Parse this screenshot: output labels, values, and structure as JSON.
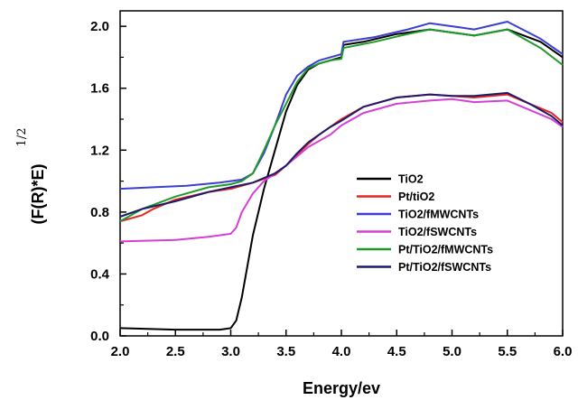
{
  "chart_data": {
    "type": "line",
    "title": "",
    "xlabel": "Energy/ev",
    "ylabel": "(F(R)*E)",
    "ylabel_superscript": "1/2",
    "xlim": [
      2.0,
      6.0
    ],
    "ylim": [
      0.0,
      2.1
    ],
    "x_ticks": [
      "2.0",
      "2.5",
      "3.0",
      "3.5",
      "4.0",
      "4.5",
      "5.0",
      "5.5",
      "6.0"
    ],
    "y_ticks": [
      "0.0",
      "0.4",
      "0.8",
      "1.2",
      "1.6",
      "2.0"
    ],
    "grid": false,
    "legend_position": "right-center",
    "series": [
      {
        "name": "TiO2",
        "color": "#000000",
        "points": [
          [
            2.0,
            0.05
          ],
          [
            2.5,
            0.04
          ],
          [
            2.9,
            0.04
          ],
          [
            3.0,
            0.05
          ],
          [
            3.05,
            0.1
          ],
          [
            3.1,
            0.25
          ],
          [
            3.15,
            0.45
          ],
          [
            3.2,
            0.65
          ],
          [
            3.3,
            0.95
          ],
          [
            3.4,
            1.2
          ],
          [
            3.5,
            1.45
          ],
          [
            3.6,
            1.62
          ],
          [
            3.7,
            1.72
          ],
          [
            3.8,
            1.76
          ],
          [
            3.9,
            1.78
          ],
          [
            4.0,
            1.8
          ],
          [
            4.02,
            1.88
          ],
          [
            4.2,
            1.9
          ],
          [
            4.5,
            1.95
          ],
          [
            4.8,
            1.98
          ],
          [
            5.0,
            1.96
          ],
          [
            5.2,
            1.94
          ],
          [
            5.5,
            1.98
          ],
          [
            5.8,
            1.9
          ],
          [
            6.0,
            1.8
          ]
        ]
      },
      {
        "name": "Pt/tiO2",
        "color": "#e8251f",
        "points": [
          [
            2.0,
            0.74
          ],
          [
            2.2,
            0.78
          ],
          [
            2.3,
            0.82
          ],
          [
            2.5,
            0.88
          ],
          [
            2.8,
            0.93
          ],
          [
            3.0,
            0.95
          ],
          [
            3.2,
            0.99
          ],
          [
            3.4,
            1.04
          ],
          [
            3.5,
            1.1
          ],
          [
            3.6,
            1.17
          ],
          [
            3.7,
            1.24
          ],
          [
            3.8,
            1.3
          ],
          [
            3.9,
            1.35
          ],
          [
            4.0,
            1.4
          ],
          [
            4.2,
            1.48
          ],
          [
            4.5,
            1.54
          ],
          [
            4.8,
            1.56
          ],
          [
            5.0,
            1.55
          ],
          [
            5.2,
            1.54
          ],
          [
            5.5,
            1.56
          ],
          [
            5.7,
            1.5
          ],
          [
            5.9,
            1.44
          ],
          [
            6.0,
            1.38
          ]
        ]
      },
      {
        "name": "TiO2/fMWCNTs",
        "color": "#3a3fd0",
        "points": [
          [
            2.0,
            0.95
          ],
          [
            2.3,
            0.96
          ],
          [
            2.6,
            0.97
          ],
          [
            2.9,
            0.99
          ],
          [
            3.1,
            1.01
          ],
          [
            3.2,
            1.05
          ],
          [
            3.3,
            1.18
          ],
          [
            3.4,
            1.36
          ],
          [
            3.5,
            1.56
          ],
          [
            3.6,
            1.68
          ],
          [
            3.7,
            1.74
          ],
          [
            3.8,
            1.78
          ],
          [
            3.9,
            1.8
          ],
          [
            4.0,
            1.82
          ],
          [
            4.02,
            1.9
          ],
          [
            4.3,
            1.93
          ],
          [
            4.6,
            1.98
          ],
          [
            4.8,
            2.02
          ],
          [
            5.0,
            2.0
          ],
          [
            5.2,
            1.98
          ],
          [
            5.5,
            2.03
          ],
          [
            5.8,
            1.92
          ],
          [
            6.0,
            1.82
          ]
        ]
      },
      {
        "name": "TiO2/fSWCNTs",
        "color": "#d63fd6",
        "points": [
          [
            2.0,
            0.61
          ],
          [
            2.5,
            0.62
          ],
          [
            2.8,
            0.64
          ],
          [
            3.0,
            0.66
          ],
          [
            3.05,
            0.7
          ],
          [
            3.1,
            0.8
          ],
          [
            3.2,
            0.92
          ],
          [
            3.3,
            1.0
          ],
          [
            3.5,
            1.1
          ],
          [
            3.7,
            1.22
          ],
          [
            3.9,
            1.3
          ],
          [
            4.0,
            1.36
          ],
          [
            4.2,
            1.44
          ],
          [
            4.5,
            1.5
          ],
          [
            4.8,
            1.52
          ],
          [
            5.0,
            1.53
          ],
          [
            5.2,
            1.51
          ],
          [
            5.5,
            1.52
          ],
          [
            5.7,
            1.46
          ],
          [
            5.9,
            1.4
          ],
          [
            6.0,
            1.35
          ]
        ]
      },
      {
        "name": "Pt/TiO2/fMWCNTs",
        "color": "#1f9a2a",
        "points": [
          [
            2.0,
            0.74
          ],
          [
            2.2,
            0.82
          ],
          [
            2.5,
            0.9
          ],
          [
            2.8,
            0.96
          ],
          [
            3.0,
            0.98
          ],
          [
            3.1,
            1.0
          ],
          [
            3.2,
            1.05
          ],
          [
            3.3,
            1.2
          ],
          [
            3.4,
            1.36
          ],
          [
            3.5,
            1.5
          ],
          [
            3.6,
            1.64
          ],
          [
            3.7,
            1.73
          ],
          [
            3.8,
            1.76
          ],
          [
            3.9,
            1.78
          ],
          [
            4.0,
            1.79
          ],
          [
            4.02,
            1.86
          ],
          [
            4.3,
            1.9
          ],
          [
            4.6,
            1.95
          ],
          [
            4.8,
            1.98
          ],
          [
            5.0,
            1.96
          ],
          [
            5.2,
            1.94
          ],
          [
            5.5,
            1.98
          ],
          [
            5.8,
            1.86
          ],
          [
            6.0,
            1.75
          ]
        ]
      },
      {
        "name": "Pt/TiO2/fSWCNTs",
        "color": "#1b1a6b",
        "points": [
          [
            2.0,
            0.77
          ],
          [
            2.2,
            0.82
          ],
          [
            2.5,
            0.87
          ],
          [
            2.8,
            0.93
          ],
          [
            3.0,
            0.96
          ],
          [
            3.2,
            0.99
          ],
          [
            3.4,
            1.05
          ],
          [
            3.5,
            1.1
          ],
          [
            3.6,
            1.18
          ],
          [
            3.7,
            1.25
          ],
          [
            3.8,
            1.3
          ],
          [
            3.9,
            1.35
          ],
          [
            4.0,
            1.39
          ],
          [
            4.2,
            1.48
          ],
          [
            4.5,
            1.54
          ],
          [
            4.8,
            1.56
          ],
          [
            5.0,
            1.55
          ],
          [
            5.2,
            1.55
          ],
          [
            5.5,
            1.57
          ],
          [
            5.7,
            1.5
          ],
          [
            5.9,
            1.42
          ],
          [
            6.0,
            1.36
          ]
        ]
      }
    ]
  }
}
